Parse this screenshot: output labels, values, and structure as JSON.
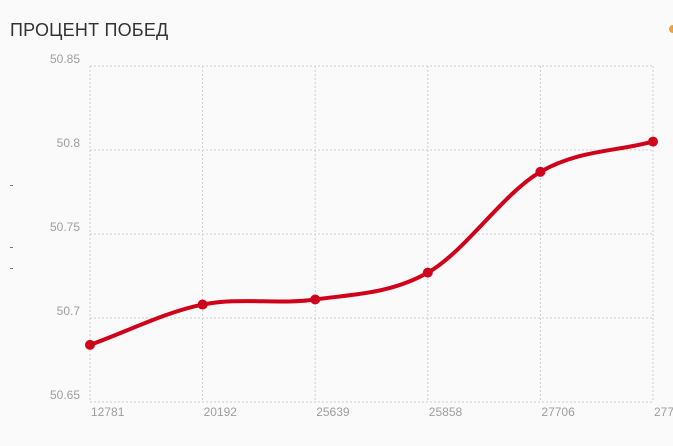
{
  "title": "ПРОЦЕНТ ПОБЕД",
  "colors": {
    "line": "#d0021b",
    "grid": "#cfcfcf",
    "tick": "#9e9e9e",
    "legend": "#e8a33a"
  },
  "chart_data": {
    "type": "line",
    "title": "ПРОЦЕНТ ПОБЕД",
    "xlabel": "",
    "ylabel": "",
    "categories": [
      "12781",
      "20192",
      "25639",
      "25858",
      "27706",
      "277"
    ],
    "series": [
      {
        "values": [
          50.684,
          50.708,
          50.711,
          50.727,
          50.787,
          50.805
        ]
      }
    ],
    "ylim": [
      50.65,
      50.85
    ],
    "yticks": [
      "50.65",
      "50.7",
      "50.75",
      "50.8",
      "50.85"
    ],
    "grid": true,
    "smooth": true
  }
}
